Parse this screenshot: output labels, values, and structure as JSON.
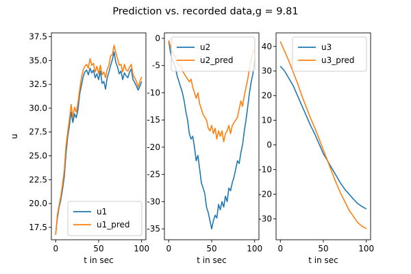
{
  "figure": {
    "title": "Prediction vs. recorded data,g = 9.81"
  },
  "chart_data": [
    {
      "type": "line",
      "xlabel": "t in sec",
      "ylabel": "u",
      "xlim": [
        -5,
        105
      ],
      "ylim": [
        16.2,
        37.9
      ],
      "xticks": [
        0,
        50,
        100
      ],
      "yticks": [
        17.5,
        20.0,
        22.5,
        25.0,
        27.5,
        30.0,
        32.5,
        35.0,
        37.5
      ],
      "legend_position": "lower right",
      "series": [
        {
          "name": "u1",
          "color": "#1f77b4",
          "x": [
            0,
            2,
            4,
            6,
            8,
            10,
            12,
            14,
            16,
            18,
            20,
            22,
            24,
            26,
            28,
            30,
            32,
            34,
            36,
            38,
            40,
            42,
            44,
            46,
            48,
            50,
            52,
            54,
            56,
            58,
            60,
            62,
            64,
            66,
            68,
            70,
            72,
            74,
            76,
            78,
            80,
            82,
            84,
            86,
            88,
            90,
            92,
            94,
            96,
            98,
            100
          ],
          "y": [
            16.8,
            18.5,
            19.6,
            20.4,
            21.5,
            22.8,
            25.2,
            27.0,
            28.2,
            29.6,
            28.5,
            29.4,
            29.0,
            29.9,
            31.5,
            32.4,
            33.3,
            33.8,
            34.0,
            33.5,
            34.2,
            33.7,
            34.0,
            33.2,
            33.6,
            33.0,
            33.9,
            32.6,
            32.8,
            32.0,
            33.2,
            33.8,
            34.5,
            35.1,
            35.9,
            34.8,
            34.3,
            33.6,
            33.9,
            33.0,
            33.7,
            33.4,
            33.2,
            33.8,
            34.1,
            33.0,
            32.7,
            32.3,
            31.9,
            32.3,
            32.8
          ]
        },
        {
          "name": "u1_pred",
          "color": "#ff7f0e",
          "x": [
            0,
            2,
            4,
            6,
            8,
            10,
            12,
            14,
            16,
            18,
            20,
            22,
            24,
            26,
            28,
            30,
            32,
            34,
            36,
            38,
            40,
            42,
            44,
            46,
            48,
            50,
            52,
            54,
            56,
            58,
            60,
            62,
            64,
            66,
            68,
            70,
            72,
            74,
            76,
            78,
            80,
            82,
            84,
            86,
            88,
            90,
            92,
            94,
            96,
            98,
            100
          ],
          "y": [
            16.7,
            18.8,
            19.8,
            20.8,
            22.0,
            23.5,
            26.0,
            27.5,
            28.8,
            30.4,
            29.0,
            30.1,
            29.6,
            30.6,
            32.0,
            33.2,
            34.0,
            34.4,
            34.6,
            34.2,
            35.2,
            34.5,
            34.7,
            33.8,
            34.4,
            33.6,
            34.5,
            33.5,
            33.8,
            33.2,
            34.1,
            34.5,
            35.5,
            35.6,
            36.6,
            35.8,
            35.2,
            34.5,
            34.6,
            33.8,
            34.6,
            34.0,
            33.9,
            34.3,
            34.6,
            33.5,
            33.2,
            32.8,
            32.2,
            32.8,
            33.3
          ]
        }
      ]
    },
    {
      "type": "line",
      "xlabel": "t in sec",
      "ylabel": "",
      "xlim": [
        -5,
        105
      ],
      "ylim": [
        -37.0,
        1.0
      ],
      "xticks": [
        0,
        50,
        100
      ],
      "yticks": [
        0,
        -5,
        -10,
        -15,
        -20,
        -25,
        -30,
        -35
      ],
      "legend_position": "upper right",
      "series": [
        {
          "name": "u2",
          "color": "#1f77b4",
          "x": [
            0,
            2,
            4,
            6,
            8,
            10,
            12,
            14,
            16,
            18,
            20,
            22,
            24,
            26,
            28,
            30,
            32,
            34,
            36,
            38,
            40,
            42,
            44,
            46,
            48,
            50,
            52,
            54,
            56,
            58,
            60,
            62,
            64,
            66,
            68,
            70,
            72,
            74,
            76,
            78,
            80,
            82,
            84,
            86,
            88,
            90,
            92,
            94,
            96,
            98,
            100
          ],
          "y": [
            -0.5,
            -2.5,
            -4.0,
            -4.5,
            -5.5,
            -7.0,
            -8.0,
            -9.0,
            -10.0,
            -11.5,
            -13.5,
            -15.0,
            -17.5,
            -18.5,
            -18.0,
            -20.0,
            -22.5,
            -21.5,
            -24.0,
            -26.5,
            -27.5,
            -28.5,
            -31.0,
            -32.0,
            -33.5,
            -35.0,
            -33.5,
            -32.5,
            -33.0,
            -30.5,
            -31.5,
            -30.0,
            -31.0,
            -29.0,
            -30.0,
            -27.5,
            -28.0,
            -26.5,
            -25.5,
            -24.0,
            -22.5,
            -23.0,
            -21.0,
            -19.5,
            -17.0,
            -15.0,
            -12.5,
            -10.0,
            -8.0,
            -6.5,
            -4.0
          ]
        },
        {
          "name": "u2_pred",
          "color": "#ff7f0e",
          "x": [
            0,
            2,
            4,
            6,
            8,
            10,
            12,
            14,
            16,
            18,
            20,
            22,
            24,
            26,
            28,
            30,
            32,
            34,
            36,
            38,
            40,
            42,
            44,
            46,
            48,
            50,
            52,
            54,
            56,
            58,
            60,
            62,
            64,
            66,
            68,
            70,
            72,
            74,
            76,
            78,
            80,
            82,
            84,
            86,
            88,
            90,
            92,
            94,
            96,
            98,
            100
          ],
          "y": [
            -0.4,
            -1.5,
            -2.5,
            -3.0,
            -3.5,
            -4.5,
            -5.0,
            -5.0,
            -6.0,
            -6.5,
            -7.0,
            -7.5,
            -8.0,
            -7.5,
            -9.0,
            -10.0,
            -11.0,
            -10.0,
            -12.0,
            -13.0,
            -14.0,
            -14.5,
            -15.0,
            -16.5,
            -17.0,
            -16.0,
            -17.5,
            -16.5,
            -18.5,
            -17.0,
            -18.0,
            -17.0,
            -19.0,
            -17.5,
            -17.0,
            -16.0,
            -17.5,
            -16.0,
            -15.5,
            -15.0,
            -14.5,
            -13.0,
            -11.5,
            -12.5,
            -10.5,
            -9.0,
            -7.5,
            -5.5,
            -4.0,
            -2.5,
            -2.0
          ]
        }
      ]
    },
    {
      "type": "line",
      "xlabel": "t in sec",
      "ylabel": "",
      "xlim": [
        -5,
        105
      ],
      "ylim": [
        -38.5,
        45.5
      ],
      "xticks": [
        0,
        50,
        100
      ],
      "yticks": [
        40,
        30,
        20,
        10,
        0,
        -10,
        -20,
        -30
      ],
      "legend_position": "upper right",
      "series": [
        {
          "name": "u3",
          "color": "#1f77b4",
          "x": [
            0,
            5,
            10,
            15,
            20,
            25,
            30,
            35,
            40,
            45,
            50,
            55,
            60,
            65,
            70,
            75,
            80,
            85,
            90,
            95,
            100
          ],
          "y": [
            32.0,
            30.0,
            27.0,
            24.0,
            20.0,
            16.0,
            12.0,
            8.0,
            4.5,
            0.5,
            -3.5,
            -6.5,
            -9.5,
            -12.5,
            -15.5,
            -18.0,
            -20.0,
            -22.0,
            -23.8,
            -25.0,
            -26.0
          ]
        },
        {
          "name": "u3_pred",
          "color": "#ff7f0e",
          "x": [
            0,
            5,
            10,
            15,
            20,
            25,
            30,
            35,
            40,
            45,
            50,
            55,
            60,
            65,
            70,
            75,
            80,
            85,
            90,
            95,
            100
          ],
          "y": [
            42.0,
            38.0,
            34.0,
            29.5,
            25.0,
            20.0,
            15.5,
            11.0,
            7.0,
            2.5,
            -2.0,
            -6.5,
            -11.0,
            -15.5,
            -19.5,
            -23.0,
            -26.5,
            -29.0,
            -31.5,
            -33.0,
            -34.0
          ]
        }
      ]
    }
  ]
}
